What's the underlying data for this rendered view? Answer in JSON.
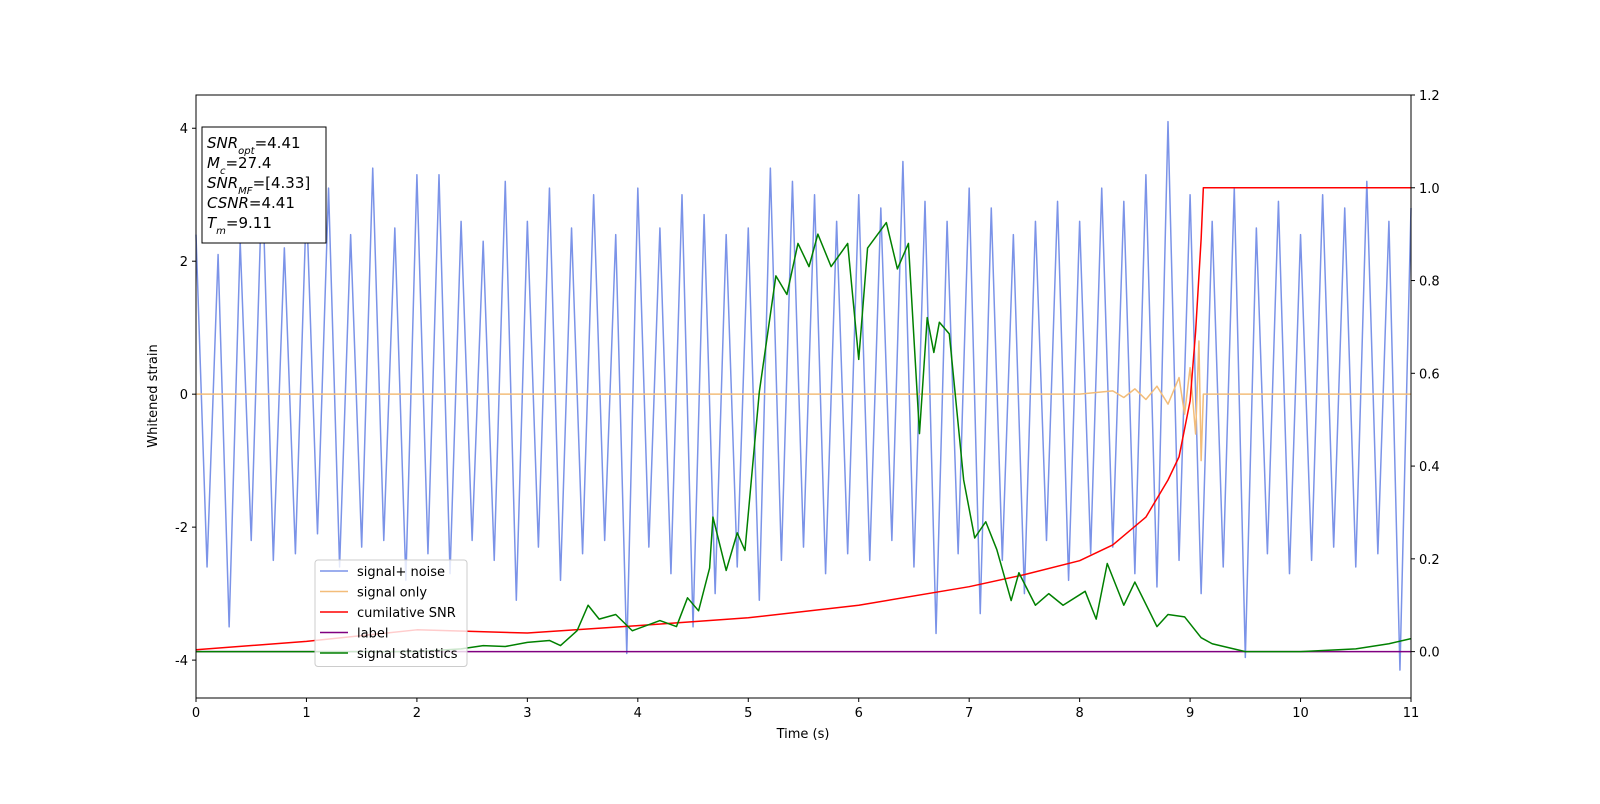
{
  "chart_data": {
    "type": "line",
    "xlabel": "Time (s)",
    "ylabel": "Whitened strain",
    "xlim": [
      0,
      11
    ],
    "xticks": [
      0,
      1,
      2,
      3,
      4,
      5,
      6,
      7,
      8,
      9,
      10,
      11
    ],
    "ylim": [
      -4.57,
      4.5
    ],
    "yticks": [
      -4,
      -2,
      0,
      2,
      4
    ],
    "y2lim": [
      -0.1,
      1.2
    ],
    "y2ticks": [
      {
        "value": 0,
        "label": "0.0"
      },
      0.2,
      0.4,
      0.6,
      0.8,
      {
        "value": 1,
        "label": "1.0"
      },
      1.2
    ],
    "legend_loc": "lower left",
    "annotations": [
      {
        "symbol": "SNR",
        "sub": "opt",
        "text": "=4.41"
      },
      {
        "symbol": "M",
        "sub": "c",
        "text": "=27.4"
      },
      {
        "symbol": "SNR",
        "sub": "MF",
        "text": "=[4.33]"
      },
      {
        "symbol": "CSNR",
        "text": "=4.41"
      },
      {
        "symbol": "T",
        "sub": "m",
        "text": "=9.11"
      }
    ],
    "series": [
      {
        "name": "signal+ noise",
        "color": "#7b93e8",
        "x": [
          0,
          0.1,
          0.2,
          0.3,
          0.4,
          0.5,
          0.6,
          0.7,
          0.8,
          0.9,
          1,
          1.1,
          1.2,
          1.3,
          1.4,
          1.5,
          1.6,
          1.7,
          1.8,
          1.9,
          2,
          2.1,
          2.2,
          2.3,
          2.4,
          2.5,
          2.6,
          2.7,
          2.8,
          2.9,
          3,
          3.1,
          3.2,
          3.3,
          3.4,
          3.5,
          3.6,
          3.7,
          3.8,
          3.9,
          4,
          4.1,
          4.2,
          4.3,
          4.4,
          4.5,
          4.6,
          4.7,
          4.8,
          4.9,
          5,
          5.1,
          5.2,
          5.3,
          5.4,
          5.5,
          5.6,
          5.7,
          5.8,
          5.9,
          6,
          6.1,
          6.2,
          6.3,
          6.4,
          6.5,
          6.6,
          6.7,
          6.8,
          6.9,
          7,
          7.1,
          7.2,
          7.3,
          7.4,
          7.5,
          7.6,
          7.7,
          7.8,
          7.9,
          8,
          8.1,
          8.2,
          8.3,
          8.4,
          8.5,
          8.6,
          8.7,
          8.8,
          8.9,
          9,
          9.1,
          9.2,
          9.3,
          9.4,
          9.5,
          9.6,
          9.7,
          9.8,
          9.9,
          10,
          10.1,
          10.2,
          10.3,
          10.4,
          10.5,
          10.6,
          10.7,
          10.8,
          10.9,
          11
        ],
        "values": [
          2.4,
          -2.6,
          2.1,
          -3.5,
          2.3,
          -2.2,
          3.3,
          -2.5,
          2.2,
          -2.4,
          2.9,
          -2.1,
          3.1,
          -2.6,
          2.4,
          -2.3,
          3.4,
          -2.2,
          2.5,
          -2.8,
          3.3,
          -2.4,
          3.3,
          -2.7,
          2.6,
          -2.2,
          2.3,
          -2.5,
          3.2,
          -3.1,
          2.6,
          -2.3,
          3.1,
          -2.8,
          2.5,
          -2.4,
          3.0,
          -2.2,
          2.4,
          -3.9,
          3.1,
          -2.3,
          2.5,
          -2.7,
          3.0,
          -3.5,
          2.7,
          -3.0,
          2.4,
          -2.6,
          2.5,
          -3.1,
          3.4,
          -2.5,
          3.2,
          -2.3,
          3.0,
          -2.7,
          2.6,
          -2.4,
          3.0,
          -2.5,
          2.8,
          -2.2,
          3.5,
          -2.6,
          2.9,
          -3.6,
          2.6,
          -2.4,
          3.1,
          -3.3,
          2.8,
          -2.5,
          2.4,
          -3.0,
          2.6,
          -2.2,
          2.9,
          -2.8,
          2.6,
          -2.4,
          3.1,
          -2.3,
          2.9,
          -2.7,
          3.3,
          -2.9,
          4.1,
          -2.5,
          3.0,
          -3.0,
          2.6,
          -2.6,
          3.1,
          -3.96,
          2.5,
          -2.4,
          2.9,
          -2.7,
          2.4,
          -2.5,
          3.0,
          -2.3,
          2.8,
          -2.6,
          3.2,
          -2.4,
          2.6,
          -4.15,
          2.8
        ]
      },
      {
        "name": "signal only",
        "color": "#f3bd7a",
        "x": [
          0,
          8,
          8.3,
          8.4,
          8.5,
          8.6,
          8.7,
          8.8,
          8.9,
          8.95,
          9,
          9.05,
          9.08,
          9.1,
          9.12,
          11
        ],
        "values": [
          0,
          0,
          0.05,
          -0.05,
          0.08,
          -0.08,
          0.12,
          -0.15,
          0.25,
          -0.3,
          0.4,
          -0.6,
          0.8,
          -1.0,
          0,
          0
        ]
      },
      {
        "name": "cumilative SNR",
        "color": "#ff0000",
        "axis": "y2",
        "x": [
          0,
          1,
          2,
          3,
          4,
          5,
          6,
          7,
          7.5,
          8,
          8.3,
          8.6,
          8.8,
          8.9,
          9,
          9.05,
          9.1,
          9.12,
          11
        ],
        "values": [
          0.004,
          0.022,
          0.047,
          0.04,
          0.056,
          0.073,
          0.1,
          0.14,
          0.166,
          0.196,
          0.23,
          0.29,
          0.37,
          0.42,
          0.54,
          0.69,
          0.89,
          1,
          1
        ]
      },
      {
        "name": "label",
        "color": "#800080",
        "axis": "y2",
        "x": [
          0,
          11
        ],
        "values": [
          0,
          0
        ]
      },
      {
        "name": "signal statistics",
        "color": "#008000",
        "axis": "y2",
        "x": [
          0,
          2,
          2.4,
          2.6,
          2.8,
          3,
          3.2,
          3.3,
          3.45,
          3.55,
          3.65,
          3.8,
          3.95,
          4.2,
          4.35,
          4.45,
          4.55,
          4.65,
          4.68,
          4.8,
          4.9,
          4.97,
          5.1,
          5.25,
          5.35,
          5.45,
          5.55,
          5.63,
          5.75,
          5.9,
          6,
          6.08,
          6.25,
          6.35,
          6.45,
          6.55,
          6.62,
          6.68,
          6.73,
          6.82,
          6.95,
          7.05,
          7.15,
          7.25,
          7.38,
          7.45,
          7.6,
          7.72,
          7.85,
          8.05,
          8.15,
          8.25,
          8.4,
          8.5,
          8.7,
          8.8,
          8.95,
          9.1,
          9.2,
          9.5,
          10,
          10.5,
          10.8,
          11
        ],
        "values": [
          0,
          0,
          0.006,
          0.013,
          0.011,
          0.02,
          0.024,
          0.013,
          0.045,
          0.1,
          0.07,
          0.08,
          0.045,
          0.067,
          0.054,
          0.116,
          0.088,
          0.18,
          0.29,
          0.175,
          0.256,
          0.218,
          0.56,
          0.81,
          0.77,
          0.88,
          0.83,
          0.9,
          0.83,
          0.88,
          0.63,
          0.87,
          0.925,
          0.825,
          0.88,
          0.47,
          0.72,
          0.645,
          0.71,
          0.685,
          0.37,
          0.245,
          0.28,
          0.22,
          0.11,
          0.17,
          0.1,
          0.125,
          0.1,
          0.13,
          0.07,
          0.19,
          0.1,
          0.15,
          0.054,
          0.08,
          0.075,
          0.03,
          0.017,
          0,
          0,
          0.006,
          0.017,
          0.028
        ]
      }
    ]
  }
}
